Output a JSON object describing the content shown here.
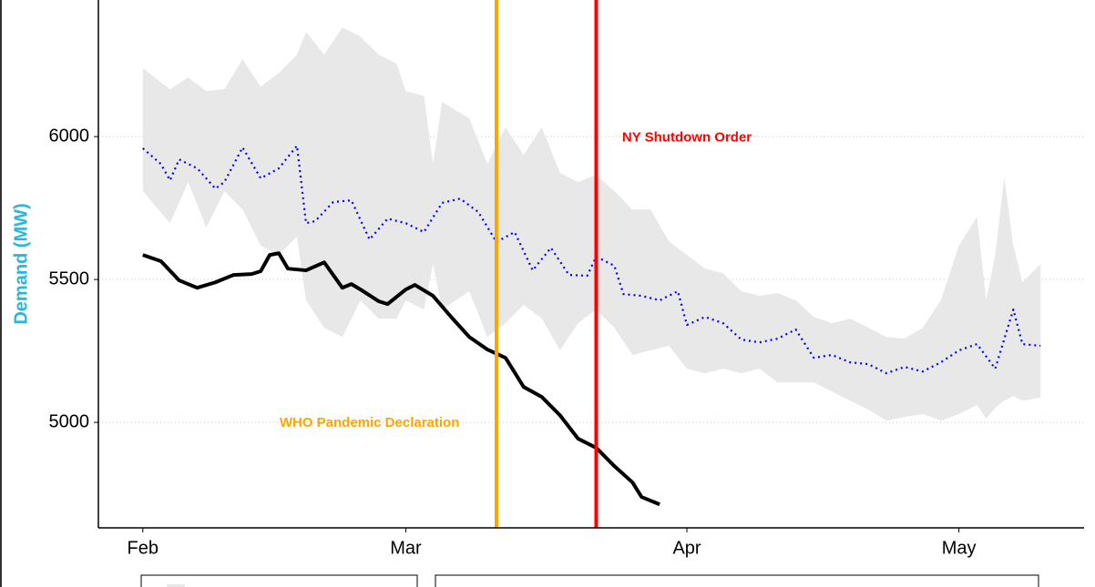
{
  "chart_data": {
    "type": "line",
    "y_label": "Demand (MW)",
    "xlim": [
      -4.9,
      103.8
    ],
    "xticks": [
      {
        "value": 0,
        "label": "Feb"
      },
      {
        "value": 29,
        "label": "Mar"
      },
      {
        "value": 60,
        "label": "Apr"
      },
      {
        "value": 90,
        "label": "May"
      }
    ],
    "ylim": [
      4631,
      6478
    ],
    "yticks": [
      5000,
      5500,
      6000
    ],
    "grid": true,
    "band": {
      "color": "#e8e8e8",
      "x": [
        0,
        3,
        5,
        7,
        9,
        11,
        13,
        15,
        17,
        18,
        20,
        22,
        24,
        26,
        28,
        29,
        31,
        32,
        33,
        36,
        38,
        40,
        42,
        44,
        46,
        48,
        50,
        52,
        54,
        56,
        58,
        60,
        62,
        64,
        66,
        68,
        70,
        72,
        74,
        76,
        78,
        80,
        82,
        84,
        86,
        88,
        90,
        92,
        93,
        94,
        95,
        96,
        97,
        99
      ],
      "upper": [
        6239,
        6166,
        6207,
        6159,
        6166,
        6271,
        6175,
        6223,
        6287,
        6366,
        6287,
        6382,
        6350,
        6287,
        6255,
        6159,
        6143,
        5904,
        6121,
        6064,
        5904,
        6032,
        5936,
        6032,
        5873,
        5841,
        5866,
        5809,
        5745,
        5745,
        5634,
        5586,
        5538,
        5522,
        5459,
        5443,
        5452,
        5427,
        5369,
        5347,
        5363,
        5331,
        5299,
        5293,
        5331,
        5427,
        5618,
        5720,
        5427,
        5586,
        5857,
        5618,
        5490,
        5554
      ],
      "lower": [
        5809,
        5697,
        5841,
        5682,
        5809,
        5745,
        5618,
        5586,
        5650,
        5427,
        5331,
        5299,
        5427,
        5363,
        5363,
        5427,
        5395,
        5554,
        5395,
        5459,
        5299,
        5347,
        5411,
        5363,
        5252,
        5347,
        5395,
        5331,
        5236,
        5252,
        5268,
        5188,
        5172,
        5188,
        5172,
        5188,
        5140,
        5140,
        5140,
        5108,
        5076,
        5045,
        5006,
        5019,
        5029,
        5006,
        5029,
        5061,
        5013,
        5051,
        5076,
        5092,
        5076,
        5086
      ]
    },
    "series": [
      {
        "color": "#0000ff",
        "style": "dotted",
        "x": [
          0,
          2,
          3,
          4,
          6,
          8,
          9,
          11,
          13,
          15,
          17,
          18,
          19,
          21,
          23,
          25,
          27,
          29,
          31,
          33,
          35,
          37,
          39,
          41,
          43,
          45,
          47,
          49,
          50,
          52,
          53,
          55,
          57,
          59,
          60,
          62,
          64,
          66,
          68,
          70,
          72,
          74,
          76,
          78,
          80,
          82,
          84,
          86,
          88,
          90,
          92,
          94,
          96,
          97,
          99
        ],
        "values": [
          5959,
          5904,
          5847,
          5920,
          5889,
          5818,
          5841,
          5962,
          5854,
          5889,
          5968,
          5697,
          5704,
          5771,
          5777,
          5640,
          5713,
          5697,
          5666,
          5768,
          5783,
          5736,
          5631,
          5666,
          5532,
          5611,
          5516,
          5513,
          5580,
          5548,
          5449,
          5443,
          5427,
          5459,
          5341,
          5369,
          5347,
          5290,
          5280,
          5293,
          5325,
          5226,
          5236,
          5210,
          5204,
          5172,
          5194,
          5178,
          5210,
          5252,
          5274,
          5188,
          5395,
          5274,
          5268
        ]
      },
      {
        "color": "#000000",
        "style": "solid",
        "x": [
          0,
          2,
          4,
          6,
          8,
          10,
          12,
          13,
          14,
          15,
          16,
          18,
          20,
          22,
          23,
          24,
          26,
          27,
          29,
          30,
          32,
          34,
          36,
          38,
          40,
          42,
          44,
          46,
          48,
          50,
          52,
          54,
          55,
          57
        ],
        "values": [
          5586,
          5564,
          5497,
          5471,
          5490,
          5516,
          5519,
          5529,
          5586,
          5592,
          5538,
          5532,
          5560,
          5471,
          5484,
          5465,
          5424,
          5414,
          5465,
          5481,
          5443,
          5369,
          5299,
          5255,
          5226,
          5124,
          5089,
          5025,
          4943,
          4911,
          4847,
          4790,
          4739,
          4713
        ]
      }
    ],
    "vlines": [
      {
        "x": 39,
        "color": "#ffa500"
      },
      {
        "x": 50,
        "color": "#ff0000"
      }
    ],
    "annotations": [
      {
        "text": "WHO Pandemic Declaration",
        "x": 25,
        "y": 4997,
        "color": "#ffa500"
      },
      {
        "text": "NY Shutdown Order",
        "x": 60,
        "y": 5995,
        "color": "#ff0000"
      }
    ]
  }
}
